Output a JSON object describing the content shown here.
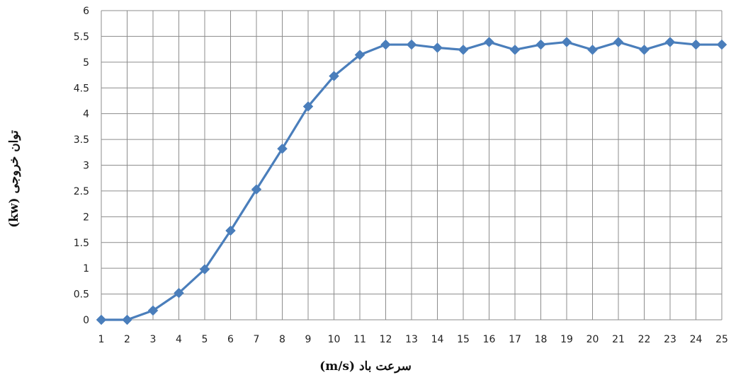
{
  "chart_data": {
    "type": "line",
    "x": [
      1,
      2,
      3,
      4,
      5,
      6,
      7,
      8,
      9,
      10,
      11,
      12,
      13,
      14,
      15,
      16,
      17,
      18,
      19,
      20,
      21,
      22,
      23,
      24,
      25
    ],
    "series": [
      {
        "values": [
          0,
          0,
          0.18,
          0.52,
          0.98,
          1.73,
          2.53,
          3.32,
          4.14,
          4.73,
          5.14,
          5.34,
          5.34,
          5.28,
          5.24,
          5.39,
          5.24,
          5.34,
          5.39,
          5.24,
          5.39,
          5.24,
          5.39,
          5.34,
          5.34
        ],
        "color": "#4a7ebb"
      }
    ],
    "xlabel": "سرعت باد (m/s)",
    "ylabel": "توان خروجی (kw)",
    "xlim": [
      1,
      25
    ],
    "ylim": [
      0,
      6
    ],
    "yticks": [
      "0",
      "0.5",
      "1",
      "1.5",
      "2",
      "2.5",
      "3",
      "3.5",
      "4",
      "4.5",
      "5",
      "5.5",
      "6"
    ],
    "xticks": [
      "1",
      "2",
      "3",
      "4",
      "5",
      "6",
      "7",
      "8",
      "9",
      "10",
      "11",
      "12",
      "13",
      "14",
      "15",
      "16",
      "17",
      "18",
      "19",
      "20",
      "21",
      "22",
      "23",
      "24",
      "25"
    ],
    "grid": true,
    "marker": "diamond"
  }
}
